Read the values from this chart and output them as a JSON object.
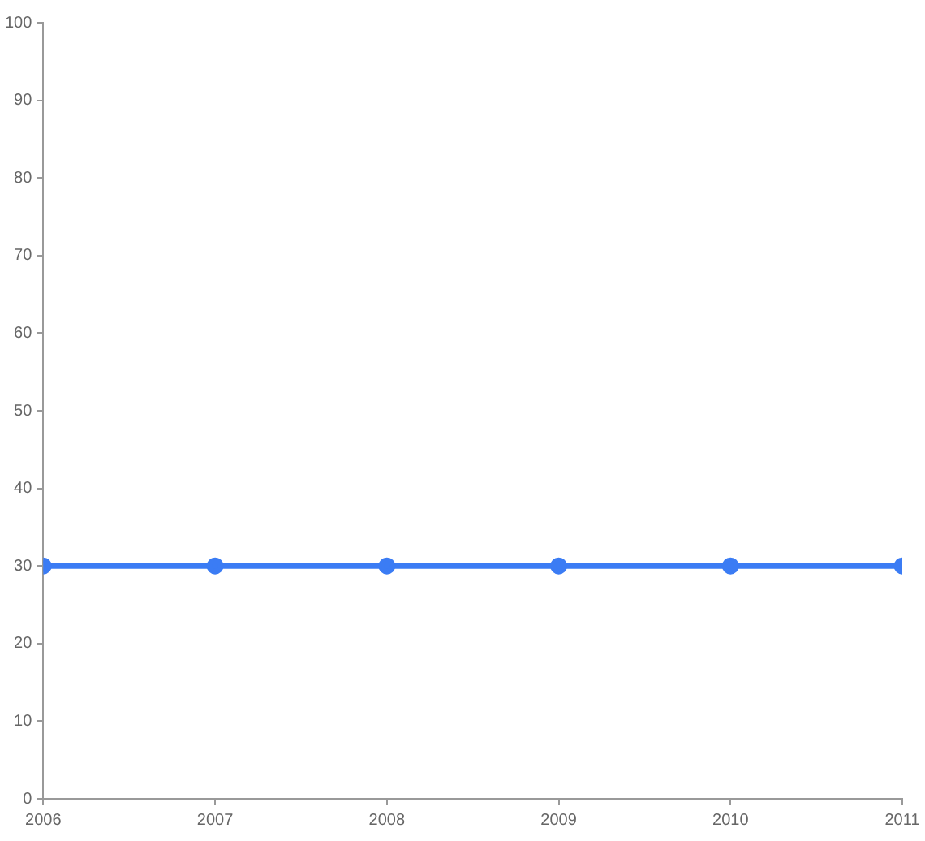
{
  "chart_data": {
    "type": "line",
    "x": [
      2006,
      2007,
      2008,
      2009,
      2010,
      2011
    ],
    "series": [
      {
        "color": "#3b7cf4",
        "values": [
          30,
          30,
          30,
          30,
          30,
          30
        ]
      }
    ],
    "xlim": [
      2006,
      2011
    ],
    "xticks": [
      2006,
      2007,
      2008,
      2009,
      2010,
      2011
    ],
    "ylim": [
      0,
      100
    ],
    "yticks": [
      0,
      10,
      20,
      30,
      40,
      50,
      60,
      70,
      80,
      90,
      100
    ],
    "marker": "circle",
    "grid": false,
    "legend": false
  }
}
